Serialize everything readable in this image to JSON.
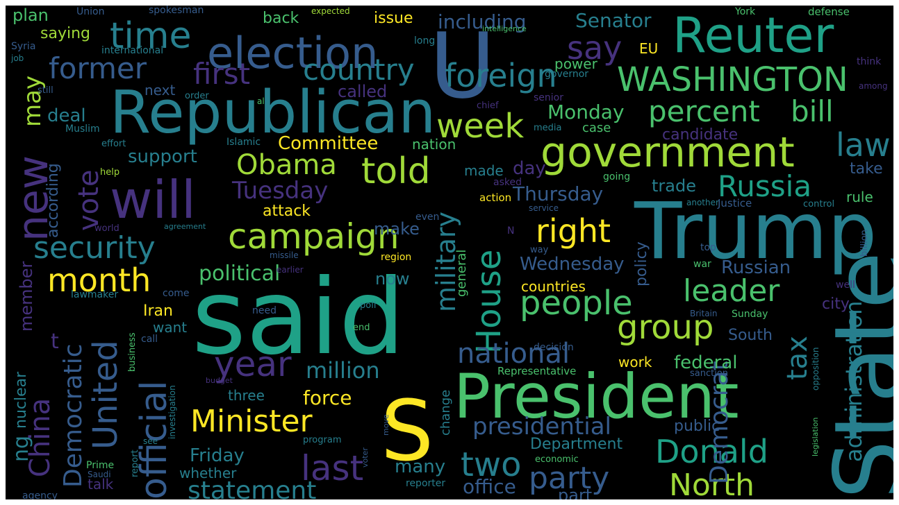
{
  "image": {
    "kind": "word-cloud",
    "background": "#000000"
  },
  "palette": [
    "#440154",
    "#46327e",
    "#365c8d",
    "#277f8e",
    "#1fa187",
    "#4ac16d",
    "#a0da39",
    "#fde725"
  ],
  "words": [
    {
      "text": "Trump",
      "color": "#277f8e"
    },
    {
      "text": "said",
      "color": "#1fa187"
    },
    {
      "text": "State",
      "color": "#277f8e"
    },
    {
      "text": "President",
      "color": "#4ac16d"
    },
    {
      "text": "S",
      "color": "#fde725"
    },
    {
      "text": "Republican",
      "color": "#277f8e"
    },
    {
      "text": "U",
      "color": "#365c8d"
    },
    {
      "text": "Reuter",
      "color": "#1fa187"
    },
    {
      "text": "will",
      "color": "#46327e"
    },
    {
      "text": "election",
      "color": "#365c8d"
    },
    {
      "text": "government",
      "color": "#a0da39"
    },
    {
      "text": "WASHINGTON",
      "color": "#4ac16d"
    },
    {
      "text": "people",
      "color": "#4ac16d"
    },
    {
      "text": "campaign",
      "color": "#a0da39"
    },
    {
      "text": "year",
      "color": "#46327e"
    },
    {
      "text": "time",
      "color": "#277f8e"
    },
    {
      "text": "Donald",
      "color": "#1fa187"
    },
    {
      "text": "official",
      "color": "#365c8d"
    },
    {
      "text": "United",
      "color": "#365c8d"
    },
    {
      "text": "new",
      "color": "#46327e"
    },
    {
      "text": "security",
      "color": "#277f8e"
    },
    {
      "text": "month",
      "color": "#fde725"
    },
    {
      "text": "told",
      "color": "#a0da39"
    },
    {
      "text": "House",
      "color": "#1fa187"
    },
    {
      "text": "Minister",
      "color": "#fde725"
    },
    {
      "text": "two",
      "color": "#277f8e"
    },
    {
      "text": "last",
      "color": "#46327e"
    },
    {
      "text": "party",
      "color": "#365c8d"
    },
    {
      "text": "North",
      "color": "#a0da39"
    },
    {
      "text": "Democratic",
      "color": "#365c8d"
    },
    {
      "text": "China",
      "color": "#46327e"
    },
    {
      "text": "foreign",
      "color": "#277f8e"
    },
    {
      "text": "former",
      "color": "#365c8d"
    },
    {
      "text": "first",
      "color": "#46327e"
    },
    {
      "text": "country",
      "color": "#277f8e"
    },
    {
      "text": "say",
      "color": "#46327e"
    },
    {
      "text": "week",
      "color": "#a0da39"
    },
    {
      "text": "percent",
      "color": "#4ac16d"
    },
    {
      "text": "leader",
      "color": "#4ac16d"
    },
    {
      "text": "group",
      "color": "#a0da39"
    },
    {
      "text": "Russia",
      "color": "#1fa187"
    },
    {
      "text": "right",
      "color": "#fde725"
    },
    {
      "text": "law",
      "color": "#277f8e"
    },
    {
      "text": "bill",
      "color": "#4ac16d"
    },
    {
      "text": "military",
      "color": "#277f8e"
    },
    {
      "text": "national",
      "color": "#365c8d"
    },
    {
      "text": "Obama",
      "color": "#a0da39"
    },
    {
      "text": "vote",
      "color": "#46327e"
    },
    {
      "text": "Tuesday",
      "color": "#46327e"
    },
    {
      "text": "political",
      "color": "#4ac16d"
    },
    {
      "text": "million",
      "color": "#277f8e"
    },
    {
      "text": "statement",
      "color": "#277f8e"
    },
    {
      "text": "presidential",
      "color": "#365c8d"
    },
    {
      "text": "Democrat",
      "color": "#365c8d"
    },
    {
      "text": "tax",
      "color": "#277f8e"
    },
    {
      "text": "administration",
      "color": "#277f8e"
    },
    {
      "text": "may",
      "color": "#a0da39"
    },
    {
      "text": "according",
      "color": "#365c8d"
    },
    {
      "text": "member",
      "color": "#46327e"
    },
    {
      "text": "nuclear",
      "color": "#277f8e"
    },
    {
      "text": "Committee",
      "color": "#fde725"
    },
    {
      "text": "including",
      "color": "#365c8d"
    },
    {
      "text": "Senator",
      "color": "#277f8e"
    },
    {
      "text": "Monday",
      "color": "#4ac16d"
    },
    {
      "text": "Thursday",
      "color": "#365c8d"
    },
    {
      "text": "Wednesday",
      "color": "#365c8d"
    },
    {
      "text": "Friday",
      "color": "#277f8e"
    },
    {
      "text": "force",
      "color": "#fde725"
    },
    {
      "text": "federal",
      "color": "#4ac16d"
    },
    {
      "text": "Russian",
      "color": "#365c8d"
    },
    {
      "text": "attack",
      "color": "#fde725"
    },
    {
      "text": "make",
      "color": "#365c8d"
    },
    {
      "text": "support",
      "color": "#277f8e"
    },
    {
      "text": "deal",
      "color": "#277f8e"
    },
    {
      "text": "day",
      "color": "#46327e"
    },
    {
      "text": "trade",
      "color": "#277f8e"
    },
    {
      "text": "Department",
      "color": "#277f8e"
    },
    {
      "text": "public",
      "color": "#365c8d"
    },
    {
      "text": "Iran",
      "color": "#fde725"
    },
    {
      "text": "policy",
      "color": "#365c8d"
    },
    {
      "text": "office",
      "color": "#365c8d"
    },
    {
      "text": "countries",
      "color": "#fde725"
    },
    {
      "text": "many",
      "color": "#277f8e"
    },
    {
      "text": "now",
      "color": "#277f8e"
    },
    {
      "text": "called",
      "color": "#46327e"
    },
    {
      "text": "case",
      "color": "#4ac16d"
    },
    {
      "text": "candidate",
      "color": "#46327e"
    },
    {
      "text": "South",
      "color": "#365c8d"
    },
    {
      "text": "work",
      "color": "#fde725"
    },
    {
      "text": "city",
      "color": "#46327e"
    },
    {
      "text": "take",
      "color": "#365c8d"
    },
    {
      "text": "rule",
      "color": "#4ac16d"
    },
    {
      "text": "EU",
      "color": "#fde725"
    },
    {
      "text": "power",
      "color": "#4ac16d"
    },
    {
      "text": "next",
      "color": "#365c8d"
    },
    {
      "text": "back",
      "color": "#4ac16d"
    },
    {
      "text": "issue",
      "color": "#fde725"
    },
    {
      "text": "plan",
      "color": "#4ac16d"
    },
    {
      "text": "saying",
      "color": "#a0da39"
    },
    {
      "text": "three",
      "color": "#277f8e"
    },
    {
      "text": "whether",
      "color": "#277f8e"
    },
    {
      "text": "talk",
      "color": "#46327e"
    },
    {
      "text": "want",
      "color": "#277f8e"
    },
    {
      "text": "made",
      "color": "#277f8e"
    },
    {
      "text": "nation",
      "color": "#4ac16d"
    },
    {
      "text": "general",
      "color": "#4ac16d"
    },
    {
      "text": "change",
      "color": "#277f8e"
    },
    {
      "text": "Union",
      "color": "#365c8d"
    },
    {
      "text": "spokesman",
      "color": "#365c8d"
    },
    {
      "text": "Syria",
      "color": "#365c8d"
    },
    {
      "text": "international",
      "color": "#277f8e"
    },
    {
      "text": "job",
      "color": "#277f8e"
    },
    {
      "text": "still",
      "color": "#365c8d"
    },
    {
      "text": "order",
      "color": "#277f8e"
    },
    {
      "text": "al",
      "color": "#4ac16d"
    },
    {
      "text": "chief",
      "color": "#46327e"
    },
    {
      "text": "Muslim",
      "color": "#277f8e"
    },
    {
      "text": "effort",
      "color": "#277f8e"
    },
    {
      "text": "Islamic",
      "color": "#277f8e"
    },
    {
      "text": "help",
      "color": "#a0da39"
    },
    {
      "text": "world",
      "color": "#46327e"
    },
    {
      "text": "agreement",
      "color": "#277f8e"
    },
    {
      "text": "missile",
      "color": "#365c8d"
    },
    {
      "text": "region",
      "color": "#fde725"
    },
    {
      "text": "earlier",
      "color": "#46327e"
    },
    {
      "text": "come",
      "color": "#365c8d"
    },
    {
      "text": "lawmaker",
      "color": "#277f8e"
    },
    {
      "text": "poll",
      "color": "#277f8e"
    },
    {
      "text": "need",
      "color": "#365c8d"
    },
    {
      "text": "end",
      "color": "#4ac16d"
    },
    {
      "text": "business",
      "color": "#4ac16d"
    },
    {
      "text": "investigation",
      "color": "#277f8e"
    },
    {
      "text": "budget",
      "color": "#46327e"
    },
    {
      "text": "call",
      "color": "#365c8d"
    },
    {
      "text": "report",
      "color": "#277f8e"
    },
    {
      "text": "see",
      "color": "#277f8e"
    },
    {
      "text": "program",
      "color": "#277f8e"
    },
    {
      "text": "move",
      "color": "#365c8d"
    },
    {
      "text": "voter",
      "color": "#365c8d"
    },
    {
      "text": "Prime",
      "color": "#4ac16d"
    },
    {
      "text": "Saudi",
      "color": "#365c8d"
    },
    {
      "text": "agency",
      "color": "#365c8d"
    },
    {
      "text": "reporter",
      "color": "#277f8e"
    },
    {
      "text": "part",
      "color": "#365c8d"
    },
    {
      "text": "economic",
      "color": "#4ac16d"
    },
    {
      "text": "Representative",
      "color": "#4ac16d"
    },
    {
      "text": "sanction",
      "color": "#365c8d"
    },
    {
      "text": "decision",
      "color": "#365c8d"
    },
    {
      "text": "Sunday",
      "color": "#4ac16d"
    },
    {
      "text": "Britain",
      "color": "#365c8d"
    },
    {
      "text": "well",
      "color": "#46327e"
    },
    {
      "text": "war",
      "color": "#4ac16d"
    },
    {
      "text": "top",
      "color": "#365c8d"
    },
    {
      "text": "way",
      "color": "#365c8d"
    },
    {
      "text": "N",
      "color": "#46327e"
    },
    {
      "text": "service",
      "color": "#365c8d"
    },
    {
      "text": "another",
      "color": "#277f8e"
    },
    {
      "text": "Justice",
      "color": "#365c8d"
    },
    {
      "text": "control",
      "color": "#277f8e"
    },
    {
      "text": "billion",
      "color": "#365c8d"
    },
    {
      "text": "going",
      "color": "#4ac16d"
    },
    {
      "text": "action",
      "color": "#fde725"
    },
    {
      "text": "asked",
      "color": "#46327e"
    },
    {
      "text": "even",
      "color": "#365c8d"
    },
    {
      "text": "media",
      "color": "#277f8e"
    },
    {
      "text": "senior",
      "color": "#46327e"
    },
    {
      "text": "governor",
      "color": "#277f8e"
    },
    {
      "text": "long",
      "color": "#277f8e"
    },
    {
      "text": "intelligence",
      "color": "#4ac16d"
    },
    {
      "text": "expected",
      "color": "#a0da39"
    },
    {
      "text": "York",
      "color": "#4ac16d"
    },
    {
      "text": "defense",
      "color": "#4ac16d"
    },
    {
      "text": "think",
      "color": "#46327e"
    },
    {
      "text": "among",
      "color": "#46327e"
    },
    {
      "text": "opposition",
      "color": "#277f8e"
    },
    {
      "text": "legislation",
      "color": "#4ac16d"
    },
    {
      "text": "t",
      "color": "#46327e"
    },
    {
      "text": "ng",
      "color": "#277f8e"
    }
  ]
}
